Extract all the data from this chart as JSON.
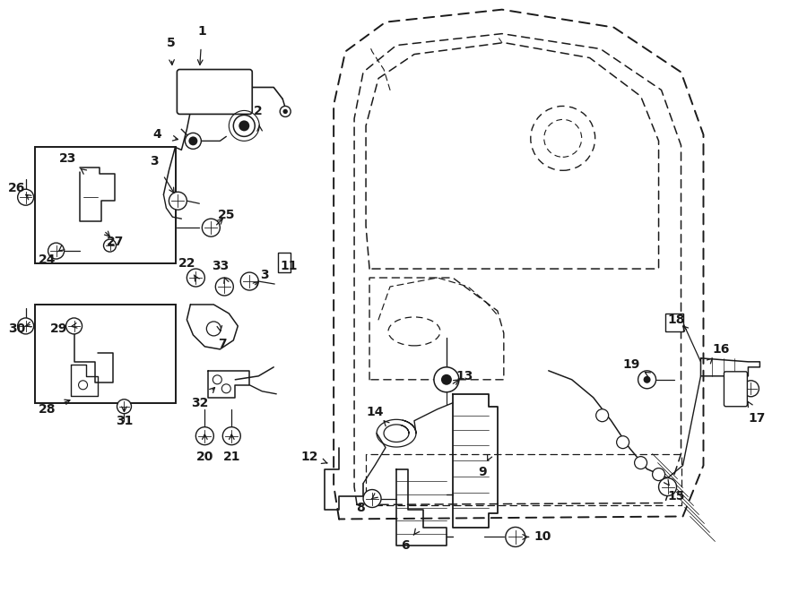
{
  "bg_color": "#ffffff",
  "lc": "#1a1a1a",
  "fig_width": 9.0,
  "fig_height": 6.62,
  "dpi": 100,
  "door": {
    "outer_x": [
      3.78,
      3.72,
      3.72,
      3.85,
      4.3,
      5.6,
      6.85,
      7.6,
      7.85,
      7.85,
      7.62,
      3.78
    ],
    "outer_y": [
      0.82,
      1.2,
      5.45,
      6.05,
      6.38,
      6.52,
      6.32,
      5.82,
      5.12,
      1.42,
      0.85,
      0.82
    ],
    "inner_x": [
      3.98,
      3.95,
      3.95,
      4.05,
      4.42,
      5.6,
      6.7,
      7.38,
      7.6,
      7.6,
      7.42,
      3.98
    ],
    "inner_y": [
      0.98,
      1.18,
      5.3,
      5.82,
      6.12,
      6.25,
      6.08,
      5.62,
      5.0,
      1.55,
      1.0,
      0.98
    ]
  },
  "window_x": [
    4.12,
    4.08,
    4.08,
    4.22,
    4.62,
    5.62,
    6.58,
    7.15,
    7.35,
    7.35,
    4.12
  ],
  "window_y": [
    3.62,
    4.1,
    5.22,
    5.75,
    6.02,
    6.15,
    5.98,
    5.55,
    5.05,
    3.62,
    3.62
  ],
  "armrest_x": [
    4.12,
    4.12,
    5.05,
    5.55,
    5.62,
    5.62,
    4.12
  ],
  "armrest_y": [
    2.38,
    3.52,
    3.52,
    3.15,
    2.9,
    2.38,
    2.38
  ],
  "bottom_strip_x": [
    4.08,
    4.08,
    7.6,
    7.6,
    4.08
  ],
  "bottom_strip_y": [
    0.98,
    1.55,
    1.55,
    0.98,
    0.98
  ]
}
